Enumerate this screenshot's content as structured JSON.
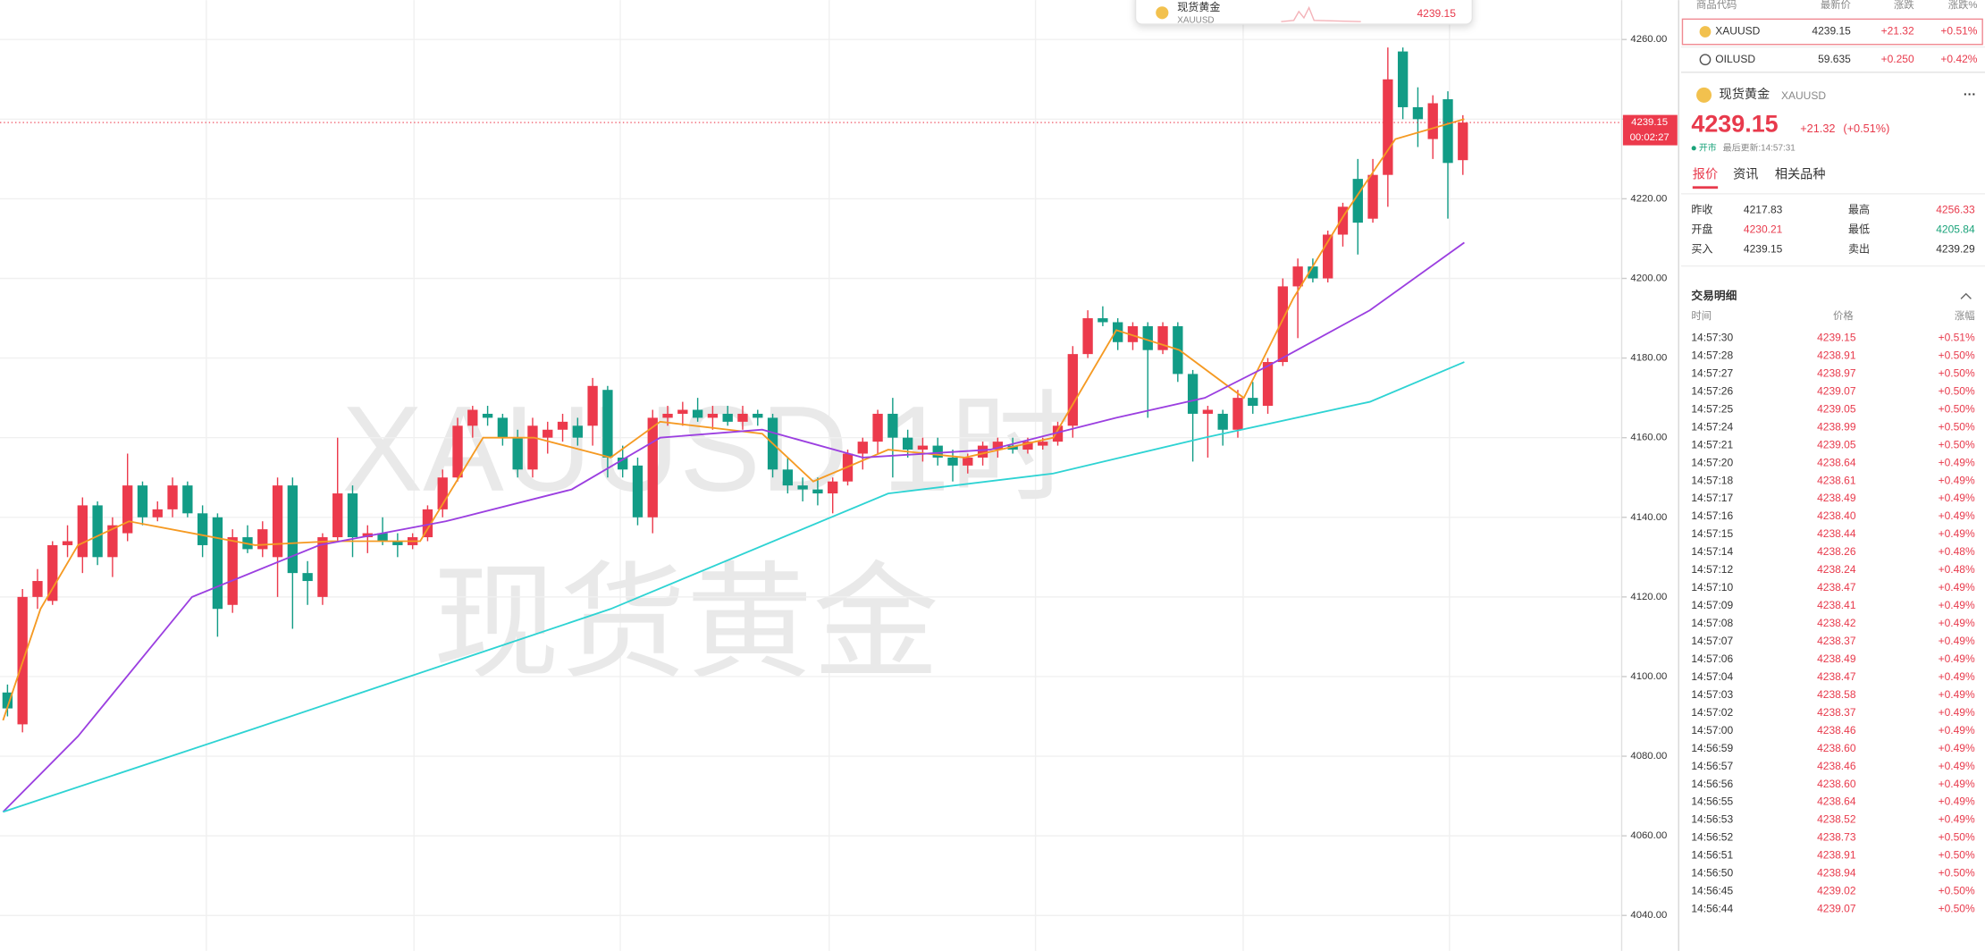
{
  "chart_data": {
    "type": "candlestick",
    "watermark_title": "XAUUSD 1时",
    "watermark_subtitle": "现货黄金",
    "open": [
      4096,
      4088,
      4120,
      4119,
      4133,
      4130,
      4143,
      4130,
      4136,
      4148,
      4140,
      4142,
      4148,
      4141,
      4140,
      4118,
      4135,
      4132,
      4130,
      4148,
      4126,
      4120,
      4135,
      4146,
      4135,
      4136,
      4134,
      4133,
      4135,
      4142,
      4150,
      4163,
      4166,
      4165,
      4160,
      4152,
      4160,
      4162,
      4163,
      4163,
      4172,
      4155,
      4153,
      4140,
      4165,
      4166,
      4167,
      4165,
      4166,
      4164,
      4166,
      4165,
      4152,
      4148,
      4147,
      4146,
      4149,
      4156,
      4159,
      4166,
      4160,
      4157,
      4158,
      4155,
      4153,
      4155,
      4157,
      4158,
      4157,
      4158,
      4159,
      4163,
      4181,
      4190,
      4189,
      4184,
      4188,
      4182,
      4188,
      4176,
      4166,
      4166,
      4162,
      4170,
      4168,
      4179,
      4198,
      4203,
      4200,
      4211,
      4225,
      4215,
      4226,
      4257,
      4243,
      4235,
      4245,
      4229.7
    ],
    "high": [
      4098,
      4122,
      4127,
      4134,
      4138,
      4145,
      4144,
      4140,
      4156,
      4149,
      4144,
      4150,
      4149,
      4143,
      4141,
      4137,
      4138,
      4139,
      4150,
      4150,
      4129,
      4136,
      4160,
      4148,
      4138,
      4140,
      4136,
      4136,
      4143,
      4152,
      4165,
      4168,
      4168,
      4166,
      4162,
      4165,
      4164,
      4166,
      4165,
      4175,
      4173,
      4158,
      4155,
      4167,
      4168,
      4169,
      4170,
      4168,
      4168,
      4168,
      4167,
      4166,
      4155,
      4150,
      4150,
      4150,
      4157,
      4160,
      4167,
      4170,
      4162,
      4160,
      4160,
      4157,
      4156,
      4159,
      4160,
      4160,
      4160,
      4160,
      4164,
      4183,
      4192,
      4193,
      4190,
      4189,
      4189,
      4189,
      4189,
      4177,
      4168,
      4167,
      4172,
      4174,
      4180,
      4200,
      4205,
      4205,
      4212,
      4219,
      4230,
      4230,
      4258,
      4258,
      4248,
      4246,
      4247,
      4241
    ],
    "low": [
      4090,
      4086,
      4117,
      4118,
      4130,
      4126,
      4128,
      4125,
      4134,
      4138,
      4139,
      4140,
      4140,
      4130,
      4110,
      4116,
      4131,
      4130,
      4120,
      4112,
      4118,
      4118,
      4134,
      4130,
      4131,
      4133,
      4130,
      4132,
      4134,
      4140,
      4149,
      4160,
      4163,
      4158,
      4150,
      4150,
      4156,
      4159,
      4158,
      4158,
      4150,
      4150,
      4138,
      4136,
      4163,
      4163,
      4164,
      4162,
      4163,
      4162,
      4163,
      4150,
      4146,
      4144,
      4143,
      4141,
      4148,
      4152,
      4156,
      4150,
      4155,
      4154,
      4153,
      4149,
      4151,
      4153,
      4155,
      4156,
      4156,
      4157,
      4158,
      4160,
      4180,
      4188,
      4182,
      4182,
      4165,
      4181,
      4174,
      4154,
      4155,
      4158,
      4160,
      4166,
      4166,
      4178,
      4185,
      4199,
      4199,
      4208,
      4206,
      4214,
      4218,
      4240,
      4233,
      4230,
      4215,
      4226
    ],
    "close": [
      4092,
      4120,
      4124,
      4133,
      4134,
      4143,
      4130,
      4138,
      4148,
      4140,
      4142,
      4148,
      4141,
      4133,
      4117,
      4135,
      4132,
      4137,
      4148,
      4126,
      4124,
      4135,
      4146,
      4135,
      4136,
      4134,
      4133,
      4135,
      4142,
      4150,
      4163,
      4167,
      4165,
      4160,
      4152,
      4163,
      4162,
      4164,
      4160,
      4173,
      4155,
      4152,
      4140,
      4165,
      4166,
      4167,
      4165,
      4166,
      4164,
      4166,
      4165,
      4152,
      4148,
      4147,
      4146,
      4149,
      4156,
      4159,
      4166,
      4160,
      4157,
      4158,
      4155,
      4153,
      4155,
      4158,
      4159,
      4157,
      4159,
      4159,
      4163,
      4181,
      4190,
      4189,
      4184,
      4188,
      4182,
      4188,
      4176,
      4166,
      4167,
      4162,
      4170,
      4168,
      4179,
      4198,
      4203,
      4200,
      4211,
      4218,
      4214,
      4226,
      4250,
      4243,
      4240,
      4244,
      4229,
      4239.15
    ],
    "up_color": "#ec3a4c",
    "down_color": "#129c86",
    "series": [
      {
        "color": "#f59a23",
        "x": [
          -0.3,
          2.2,
          4.7,
          8.1,
          12.3,
          16.5,
          21.6,
          27.5,
          31.7,
          35.1,
          40.2,
          43.5,
          50.3,
          53.7,
          58.7,
          63.8,
          69.7,
          73.9,
          78.1,
          82.4,
          85.7,
          89.1,
          92.5,
          97.1
        ],
        "values": [
          4089,
          4117,
          4133,
          4139,
          4136,
          4133,
          4134,
          4134,
          4160,
          4160,
          4155,
          4164,
          4161,
          4149,
          4157,
          4155,
          4160,
          4187,
          4182,
          4170,
          4195,
          4216,
          4235,
          4240
        ]
      },
      {
        "color": "#9b3fe0",
        "x": [
          -0.3,
          4.7,
          12.3,
          20.8,
          29.2,
          37.6,
          43.5,
          50.3,
          57,
          65.5,
          73.9,
          79.8,
          84,
          90.8,
          97.1
        ],
        "values": [
          4066,
          4085,
          4120,
          4133,
          4139,
          4147,
          4160,
          4162,
          4155,
          4157,
          4165,
          4170,
          4178,
          4192,
          4209
        ]
      },
      {
        "color": "#2ed3d3",
        "x": [
          -0.3,
          16.5,
          40.2,
          58.7,
          69.7,
          79.8,
          90.8,
          97.1
        ],
        "values": [
          4066,
          4087,
          4117,
          4146,
          4151,
          4160,
          4169,
          4179
        ]
      }
    ],
    "xlim": [
      -0.5,
      107.5
    ],
    "ylim": [
      4031.1,
      4269.9
    ],
    "yticks": [
      {
        "value": 4040,
        "label": "4040.00"
      },
      {
        "value": 4060,
        "label": "4060.00"
      },
      {
        "value": 4080,
        "label": "4080.00"
      },
      {
        "value": 4100,
        "label": "4100.00"
      },
      {
        "value": 4120,
        "label": "4120.00"
      },
      {
        "value": 4140,
        "label": "4140.00"
      },
      {
        "value": 4160,
        "label": "4160.00"
      },
      {
        "value": 4180,
        "label": "4180.00"
      },
      {
        "value": 4200,
        "label": "4200.00"
      },
      {
        "value": 4220,
        "label": "4220.00"
      },
      {
        "value": 4240,
        "label": "4240.00"
      },
      {
        "value": 4260,
        "label": "4260.00"
      }
    ],
    "grid": true,
    "last_price": 4239.15,
    "countdown": "00:02:27"
  },
  "popup": {
    "name": "现货黄金",
    "code": "XAUUSD",
    "price": "4239.15"
  },
  "watchlist": {
    "headers": [
      "商品代码",
      "最新价",
      "涨跌",
      "涨跌%"
    ],
    "rows": [
      [
        "XAUUSD",
        "4239.15",
        "+21.32",
        "+0.51%"
      ],
      [
        "OILUSD",
        "59.635",
        "+0.250",
        "+0.42%"
      ]
    ]
  },
  "detail": {
    "name": "现货黄金",
    "code": "XAUUSD",
    "price": "4239.15",
    "change": "+21.32",
    "change_pct": "(+0.51%)",
    "status": "开市",
    "updated": "最后更新:14:57:31",
    "tabs": [
      "报价",
      "资讯",
      "相关品种"
    ],
    "stats": [
      [
        "昨收",
        "4217.83",
        "最高",
        "4256.33"
      ],
      [
        "开盘",
        "4230.21",
        "最低",
        "4205.84"
      ],
      [
        "买入",
        "4239.15",
        "卖出",
        "4239.29"
      ]
    ]
  },
  "trades": {
    "title": "交易明细",
    "headers": [
      "时间",
      "价格",
      "涨幅"
    ],
    "rows": [
      [
        "14:57:30",
        "4239.15",
        "+0.51%"
      ],
      [
        "14:57:28",
        "4238.91",
        "+0.50%"
      ],
      [
        "14:57:27",
        "4238.97",
        "+0.50%"
      ],
      [
        "14:57:26",
        "4239.07",
        "+0.50%"
      ],
      [
        "14:57:25",
        "4239.05",
        "+0.50%"
      ],
      [
        "14:57:24",
        "4238.99",
        "+0.50%"
      ],
      [
        "14:57:21",
        "4239.05",
        "+0.50%"
      ],
      [
        "14:57:20",
        "4238.64",
        "+0.49%"
      ],
      [
        "14:57:18",
        "4238.61",
        "+0.49%"
      ],
      [
        "14:57:17",
        "4238.49",
        "+0.49%"
      ],
      [
        "14:57:16",
        "4238.40",
        "+0.49%"
      ],
      [
        "14:57:15",
        "4238.44",
        "+0.49%"
      ],
      [
        "14:57:14",
        "4238.26",
        "+0.48%"
      ],
      [
        "14:57:12",
        "4238.24",
        "+0.48%"
      ],
      [
        "14:57:10",
        "4238.47",
        "+0.49%"
      ],
      [
        "14:57:09",
        "4238.41",
        "+0.49%"
      ],
      [
        "14:57:08",
        "4238.42",
        "+0.49%"
      ],
      [
        "14:57:07",
        "4238.37",
        "+0.49%"
      ],
      [
        "14:57:06",
        "4238.49",
        "+0.49%"
      ],
      [
        "14:57:04",
        "4238.47",
        "+0.49%"
      ],
      [
        "14:57:03",
        "4238.58",
        "+0.49%"
      ],
      [
        "14:57:02",
        "4238.37",
        "+0.49%"
      ],
      [
        "14:57:00",
        "4238.46",
        "+0.49%"
      ],
      [
        "14:56:59",
        "4238.60",
        "+0.49%"
      ],
      [
        "14:56:57",
        "4238.46",
        "+0.49%"
      ],
      [
        "14:56:56",
        "4238.60",
        "+0.49%"
      ],
      [
        "14:56:55",
        "4238.64",
        "+0.49%"
      ],
      [
        "14:56:53",
        "4238.52",
        "+0.49%"
      ],
      [
        "14:56:52",
        "4238.73",
        "+0.50%"
      ],
      [
        "14:56:51",
        "4238.91",
        "+0.50%"
      ],
      [
        "14:56:50",
        "4238.94",
        "+0.50%"
      ],
      [
        "14:56:45",
        "4239.02",
        "+0.50%"
      ],
      [
        "14:56:44",
        "4239.07",
        "+0.50%"
      ]
    ]
  }
}
